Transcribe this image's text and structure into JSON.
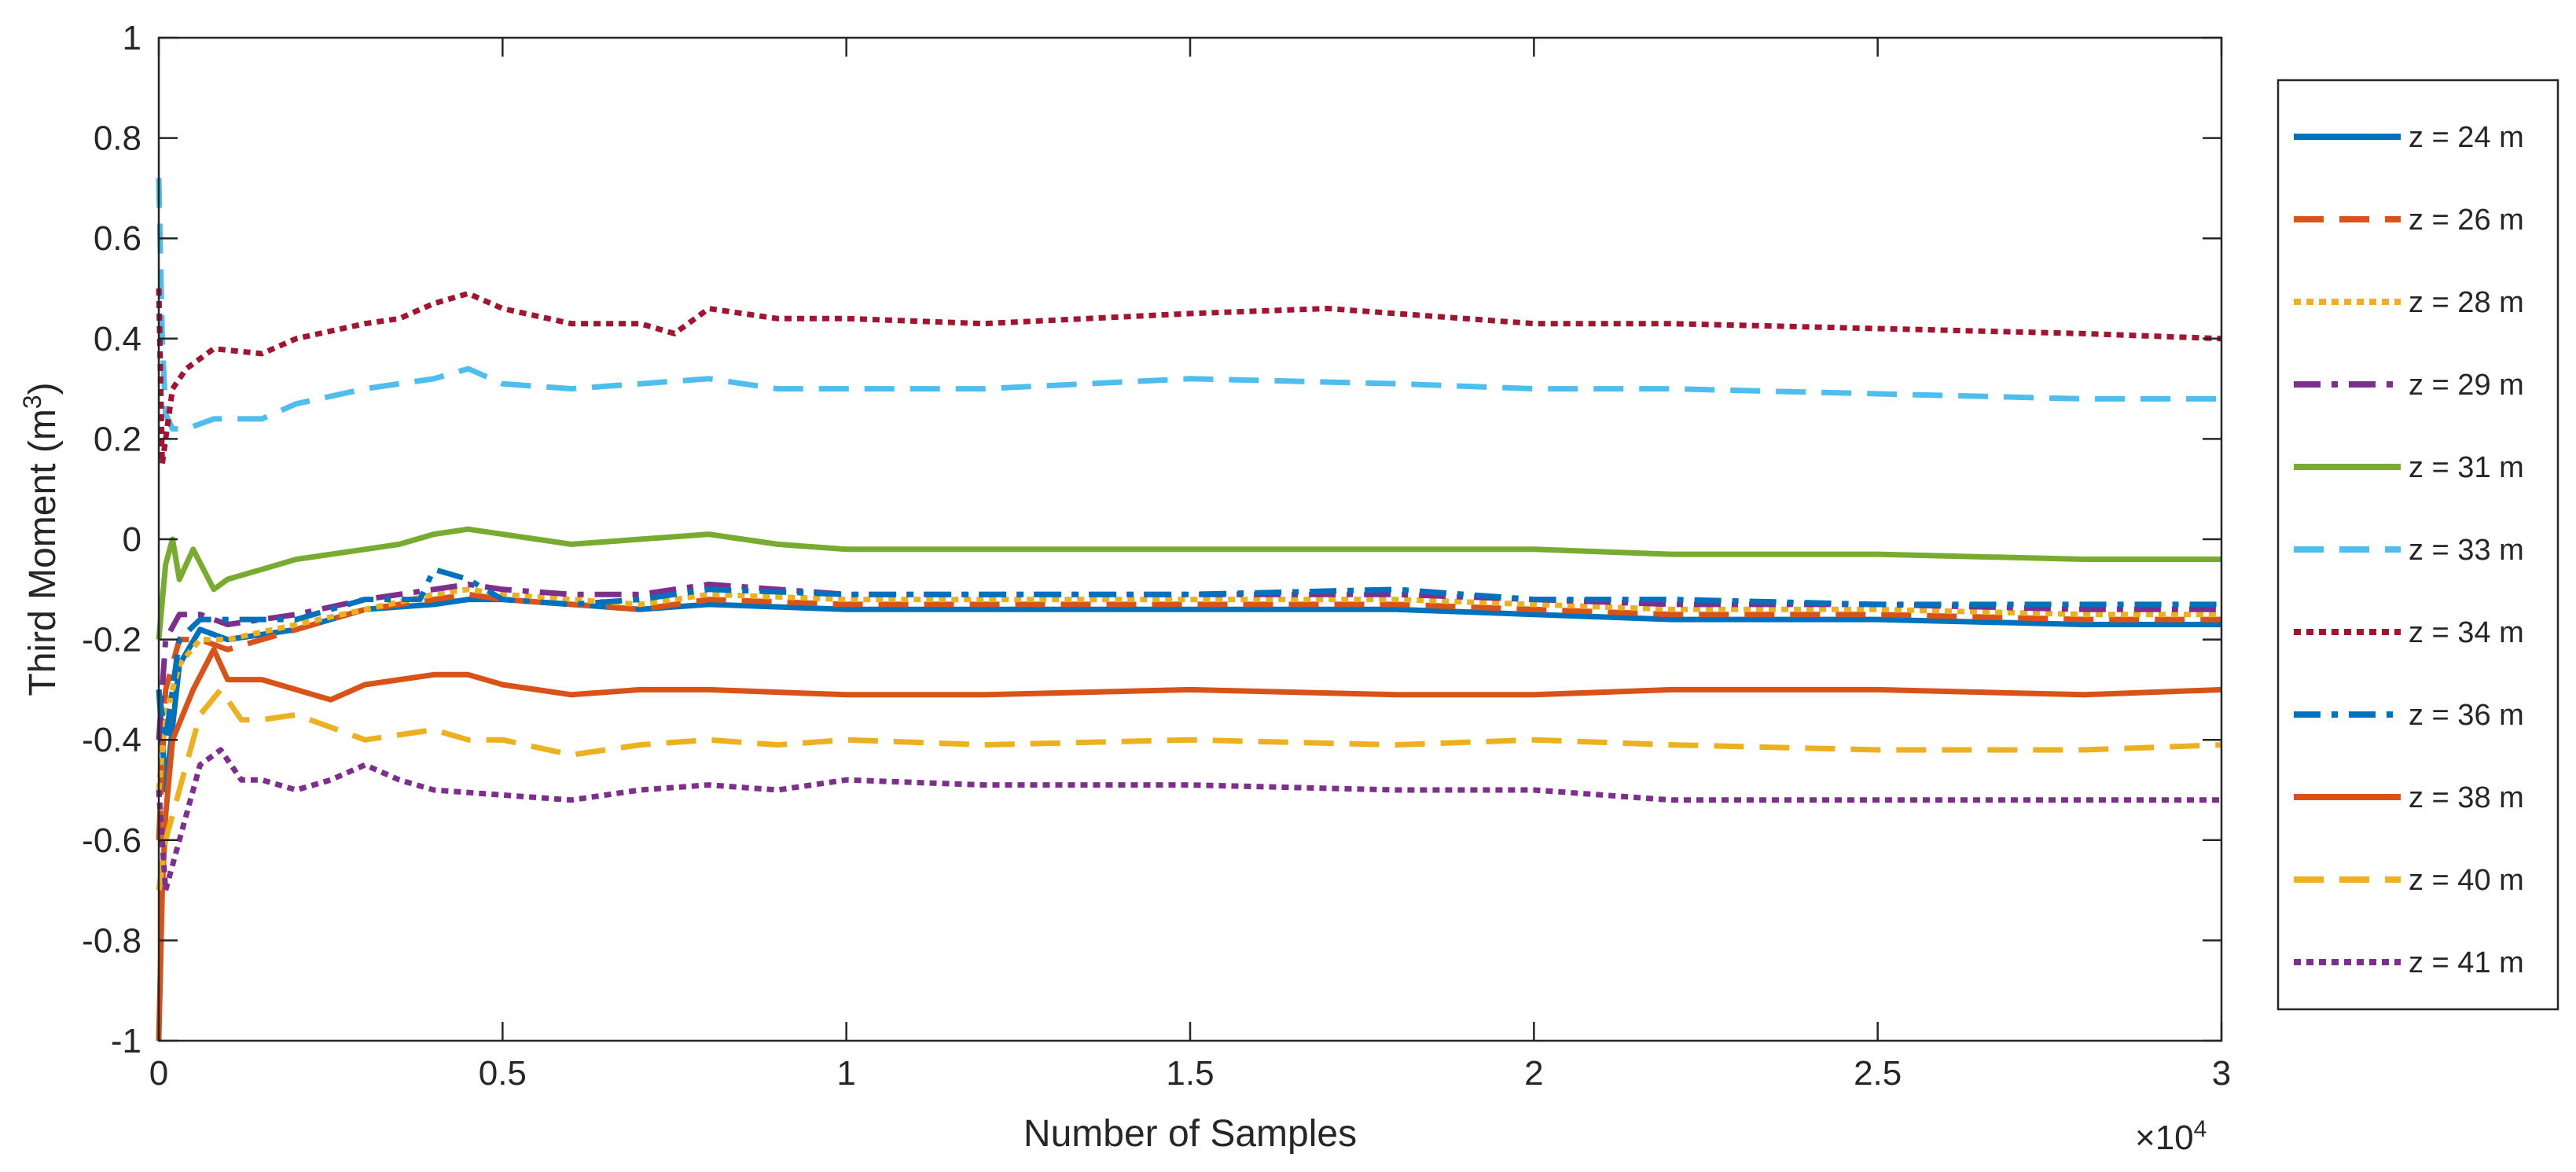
{
  "chart_data": {
    "type": "line",
    "title": "",
    "xlabel": "Number of Samples",
    "ylabel_main": "Third Moment (m",
    "ylabel_sup": "3",
    "ylabel_close": ")",
    "x_exponent_prefix": "×10",
    "x_exponent_power": "4",
    "xlim": [
      0,
      3
    ],
    "ylim": [
      -1,
      1
    ],
    "xticks": [
      0,
      0.5,
      1,
      1.5,
      2,
      2.5,
      3
    ],
    "xtick_labels": [
      "0",
      "0.5",
      "1",
      "1.5",
      "2",
      "2.5",
      "3"
    ],
    "yticks": [
      -1,
      -0.8,
      -0.6,
      -0.4,
      -0.2,
      0,
      0.2,
      0.4,
      0.6,
      0.8,
      1
    ],
    "ytick_labels": [
      "-1",
      "-0.8",
      "-0.6",
      "-0.4",
      "-0.2",
      "0",
      "0.2",
      "0.4",
      "0.6",
      "0.8",
      "1"
    ],
    "grid": false,
    "legend_position": "outside-right",
    "series": [
      {
        "name": "z = 24 m",
        "color": "#0072BD",
        "style": "solid",
        "x": [
          0,
          0.01,
          0.03,
          0.06,
          0.1,
          0.2,
          0.3,
          0.4,
          0.45,
          0.5,
          0.6,
          0.7,
          0.8,
          1.0,
          1.2,
          1.5,
          1.8,
          2.0,
          2.2,
          2.5,
          2.8,
          3.0
        ],
        "y": [
          -0.3,
          -0.5,
          -0.25,
          -0.18,
          -0.2,
          -0.18,
          -0.14,
          -0.13,
          -0.12,
          -0.12,
          -0.13,
          -0.14,
          -0.13,
          -0.14,
          -0.14,
          -0.14,
          -0.14,
          -0.15,
          -0.16,
          -0.16,
          -0.17,
          -0.17
        ]
      },
      {
        "name": "z = 26 m",
        "color": "#D95319",
        "style": "dashed",
        "x": [
          0,
          0.01,
          0.03,
          0.06,
          0.1,
          0.2,
          0.3,
          0.4,
          0.45,
          0.5,
          0.6,
          0.7,
          0.8,
          1.0,
          1.2,
          1.5,
          1.8,
          2.0,
          2.2,
          2.5,
          2.8,
          3.0
        ],
        "y": [
          -0.6,
          -0.3,
          -0.2,
          -0.2,
          -0.22,
          -0.18,
          -0.14,
          -0.12,
          -0.11,
          -0.12,
          -0.13,
          -0.14,
          -0.12,
          -0.13,
          -0.13,
          -0.13,
          -0.13,
          -0.14,
          -0.15,
          -0.15,
          -0.16,
          -0.16
        ]
      },
      {
        "name": "z = 28 m",
        "color": "#EDB120",
        "style": "dotted",
        "x": [
          0,
          0.01,
          0.03,
          0.06,
          0.1,
          0.2,
          0.3,
          0.4,
          0.45,
          0.5,
          0.6,
          0.7,
          0.8,
          1.0,
          1.2,
          1.5,
          1.8,
          2.0,
          2.2,
          2.5,
          2.8,
          3.0
        ],
        "y": [
          -0.5,
          -0.35,
          -0.25,
          -0.2,
          -0.2,
          -0.17,
          -0.14,
          -0.11,
          -0.1,
          -0.11,
          -0.12,
          -0.13,
          -0.11,
          -0.12,
          -0.12,
          -0.12,
          -0.12,
          -0.13,
          -0.14,
          -0.14,
          -0.15,
          -0.15
        ]
      },
      {
        "name": "z = 29 m",
        "color": "#7E2F8E",
        "style": "dashdot",
        "x": [
          0,
          0.01,
          0.03,
          0.06,
          0.1,
          0.2,
          0.3,
          0.4,
          0.45,
          0.5,
          0.6,
          0.7,
          0.8,
          1.0,
          1.2,
          1.5,
          1.8,
          2.0,
          2.2,
          2.5,
          2.8,
          3.0
        ],
        "y": [
          -0.4,
          -0.2,
          -0.15,
          -0.15,
          -0.17,
          -0.15,
          -0.12,
          -0.1,
          -0.09,
          -0.1,
          -0.11,
          -0.11,
          -0.09,
          -0.11,
          -0.11,
          -0.11,
          -0.11,
          -0.12,
          -0.13,
          -0.13,
          -0.14,
          -0.14
        ]
      },
      {
        "name": "z = 31 m",
        "color": "#77AC30",
        "style": "solid",
        "x": [
          0,
          0.01,
          0.02,
          0.03,
          0.05,
          0.08,
          0.1,
          0.15,
          0.2,
          0.3,
          0.35,
          0.4,
          0.45,
          0.5,
          0.6,
          0.7,
          0.8,
          0.9,
          1.0,
          1.2,
          1.5,
          1.8,
          2.0,
          2.2,
          2.5,
          2.8,
          3.0
        ],
        "y": [
          -0.2,
          -0.05,
          0.0,
          -0.08,
          -0.02,
          -0.1,
          -0.08,
          -0.06,
          -0.04,
          -0.02,
          -0.01,
          0.01,
          0.02,
          0.01,
          -0.01,
          0.0,
          0.01,
          -0.01,
          -0.02,
          -0.02,
          -0.02,
          -0.02,
          -0.02,
          -0.03,
          -0.03,
          -0.04,
          -0.04
        ]
      },
      {
        "name": "z = 33 m",
        "color": "#4DBEEE",
        "style": "dashed",
        "x": [
          0,
          0.005,
          0.01,
          0.02,
          0.04,
          0.08,
          0.15,
          0.2,
          0.3,
          0.4,
          0.45,
          0.5,
          0.6,
          0.7,
          0.8,
          0.9,
          1.0,
          1.2,
          1.5,
          1.8,
          2.0,
          2.2,
          2.5,
          2.8,
          3.0
        ],
        "y": [
          0.72,
          0.4,
          0.25,
          0.22,
          0.22,
          0.24,
          0.24,
          0.27,
          0.3,
          0.32,
          0.34,
          0.31,
          0.3,
          0.31,
          0.32,
          0.3,
          0.3,
          0.3,
          0.32,
          0.31,
          0.3,
          0.3,
          0.29,
          0.28,
          0.28
        ]
      },
      {
        "name": "z = 34 m",
        "color": "#A2142F",
        "style": "dotted",
        "x": [
          0,
          0.005,
          0.01,
          0.02,
          0.04,
          0.08,
          0.15,
          0.2,
          0.3,
          0.35,
          0.4,
          0.45,
          0.5,
          0.6,
          0.7,
          0.75,
          0.8,
          0.9,
          1.0,
          1.2,
          1.5,
          1.7,
          1.8,
          2.0,
          2.2,
          2.5,
          2.8,
          3.0
        ],
        "y": [
          0.5,
          0.15,
          0.2,
          0.3,
          0.34,
          0.38,
          0.37,
          0.4,
          0.43,
          0.44,
          0.47,
          0.49,
          0.46,
          0.43,
          0.43,
          0.41,
          0.46,
          0.44,
          0.44,
          0.43,
          0.45,
          0.46,
          0.45,
          0.43,
          0.43,
          0.42,
          0.41,
          0.4
        ]
      },
      {
        "name": "z = 36 m",
        "color": "#0072BD",
        "style": "dashdot",
        "x": [
          0,
          0.01,
          0.03,
          0.06,
          0.1,
          0.2,
          0.3,
          0.38,
          0.4,
          0.45,
          0.5,
          0.6,
          0.7,
          0.8,
          1.0,
          1.2,
          1.5,
          1.8,
          2.0,
          2.2,
          2.5,
          2.8,
          3.0
        ],
        "y": [
          -0.3,
          -0.4,
          -0.2,
          -0.16,
          -0.16,
          -0.16,
          -0.12,
          -0.12,
          -0.06,
          -0.08,
          -0.12,
          -0.13,
          -0.12,
          -0.1,
          -0.11,
          -0.11,
          -0.11,
          -0.1,
          -0.12,
          -0.12,
          -0.13,
          -0.13,
          -0.13
        ]
      },
      {
        "name": "z = 38 m",
        "color": "#D95319",
        "style": "solid",
        "x": [
          0,
          0.005,
          0.01,
          0.02,
          0.05,
          0.08,
          0.1,
          0.15,
          0.2,
          0.25,
          0.3,
          0.4,
          0.45,
          0.5,
          0.6,
          0.7,
          0.8,
          1.0,
          1.2,
          1.5,
          1.8,
          2.0,
          2.2,
          2.5,
          2.8,
          3.0
        ],
        "y": [
          -1.0,
          -0.7,
          -0.55,
          -0.4,
          -0.3,
          -0.22,
          -0.28,
          -0.28,
          -0.3,
          -0.32,
          -0.29,
          -0.27,
          -0.27,
          -0.29,
          -0.31,
          -0.3,
          -0.3,
          -0.31,
          -0.31,
          -0.3,
          -0.31,
          -0.31,
          -0.3,
          -0.3,
          -0.31,
          -0.3
        ]
      },
      {
        "name": "z = 40 m",
        "color": "#EDB120",
        "style": "dashed",
        "x": [
          0,
          0.01,
          0.03,
          0.06,
          0.09,
          0.12,
          0.15,
          0.2,
          0.3,
          0.4,
          0.45,
          0.5,
          0.6,
          0.7,
          0.8,
          0.9,
          1.0,
          1.2,
          1.5,
          1.8,
          2.0,
          2.2,
          2.5,
          2.8,
          3.0
        ],
        "y": [
          -0.7,
          -0.6,
          -0.5,
          -0.35,
          -0.3,
          -0.36,
          -0.36,
          -0.35,
          -0.4,
          -0.38,
          -0.4,
          -0.4,
          -0.43,
          -0.41,
          -0.4,
          -0.41,
          -0.4,
          -0.41,
          -0.4,
          -0.41,
          -0.4,
          -0.41,
          -0.42,
          -0.42,
          -0.41
        ]
      },
      {
        "name": "z = 41 m",
        "color": "#7E2F8E",
        "style": "dotted",
        "x": [
          0,
          0.01,
          0.03,
          0.06,
          0.09,
          0.12,
          0.15,
          0.2,
          0.25,
          0.3,
          0.35,
          0.4,
          0.5,
          0.6,
          0.7,
          0.8,
          0.9,
          1.0,
          1.2,
          1.5,
          1.8,
          2.0,
          2.2,
          2.5,
          2.8,
          3.0
        ],
        "y": [
          -0.5,
          -0.7,
          -0.6,
          -0.45,
          -0.42,
          -0.48,
          -0.48,
          -0.5,
          -0.48,
          -0.45,
          -0.48,
          -0.5,
          -0.51,
          -0.52,
          -0.5,
          -0.49,
          -0.5,
          -0.48,
          -0.49,
          -0.49,
          -0.5,
          -0.5,
          -0.52,
          -0.52,
          -0.52,
          -0.52
        ]
      }
    ]
  }
}
